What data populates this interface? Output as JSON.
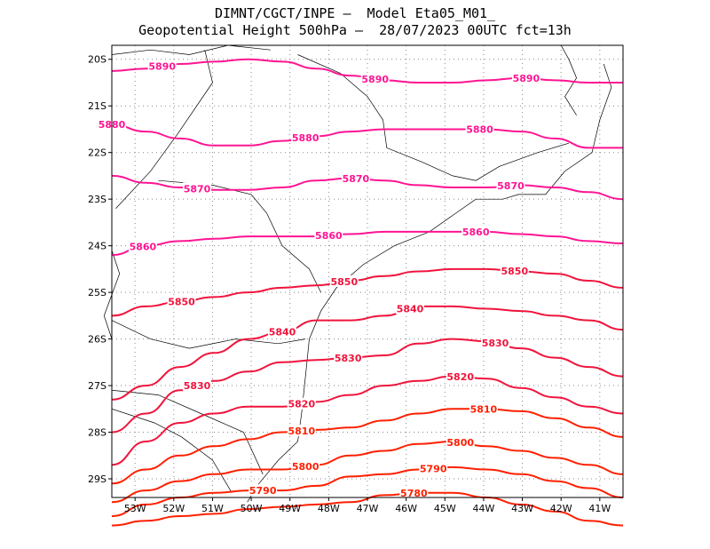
{
  "header": {
    "line1": "DIMNT/CGCT/INPE –  Model Eta05_M01_",
    "line2": "Geopotential Height 500hPa –  28/07/2023 00UTC fct=13h"
  },
  "axes": {
    "lon_labels": [
      "53W",
      "52W",
      "51W",
      "50W",
      "49W",
      "48W",
      "47W",
      "46W",
      "45W",
      "44W",
      "43W",
      "42W",
      "41W"
    ],
    "lat_labels": [
      "20S",
      "21S",
      "22S",
      "23S",
      "24S",
      "25S",
      "26S",
      "27S",
      "28S",
      "29S"
    ]
  },
  "colors": {
    "high": "#ff1493",
    "mid": "#f0143c",
    "low": "#ff2000",
    "coast": "#000000",
    "grid": "#888888"
  },
  "contours": [
    {
      "value": "5890",
      "lat": [
        20.25,
        20.2,
        20.1,
        20.05,
        20.0,
        20.05,
        20.2,
        20.35,
        20.45,
        20.5,
        20.5,
        20.45,
        20.4,
        20.45,
        20.5,
        20.5
      ],
      "labels": [
        {
          "text": "5890",
          "lon": -52.3
        },
        {
          "text": "5890",
          "lon": -46.8
        },
        {
          "text": "5890",
          "lon": -42.9
        }
      ]
    },
    {
      "value": "5880",
      "lat": [
        21.4,
        21.55,
        21.7,
        21.85,
        21.85,
        21.75,
        21.65,
        21.55,
        21.5,
        21.5,
        21.5,
        21.5,
        21.55,
        21.7,
        21.9,
        21.9
      ],
      "labels": [
        {
          "text": "5880",
          "lon": -53.6
        },
        {
          "text": "5880",
          "lon": -48.6
        },
        {
          "text": "5880",
          "lon": -44.1
        }
      ]
    },
    {
      "value": "5870",
      "lat": [
        22.5,
        22.65,
        22.75,
        22.8,
        22.8,
        22.75,
        22.6,
        22.55,
        22.6,
        22.7,
        22.75,
        22.75,
        22.7,
        22.75,
        22.85,
        23.0
      ],
      "labels": [
        {
          "text": "5870",
          "lon": -51.4
        },
        {
          "text": "5870",
          "lon": -47.3
        },
        {
          "text": "5870",
          "lon": -43.3
        }
      ]
    },
    {
      "value": "5860",
      "lat": [
        24.2,
        24.0,
        23.9,
        23.85,
        23.8,
        23.8,
        23.8,
        23.75,
        23.7,
        23.7,
        23.7,
        23.7,
        23.75,
        23.8,
        23.9,
        23.95
      ],
      "labels": [
        {
          "text": "5860",
          "lon": -52.8
        },
        {
          "text": "5860",
          "lon": -48.0
        },
        {
          "text": "5860",
          "lon": -44.2
        }
      ]
    },
    {
      "value": "5850",
      "lat": [
        25.5,
        25.3,
        25.2,
        25.1,
        25.0,
        24.9,
        24.85,
        24.75,
        24.65,
        24.55,
        24.5,
        24.5,
        24.55,
        24.6,
        24.75,
        24.9
      ],
      "labels": [
        {
          "text": "5850",
          "lon": -51.8
        },
        {
          "text": "5850",
          "lon": -47.6
        },
        {
          "text": "5850",
          "lon": -43.2
        }
      ]
    },
    {
      "value": "5840",
      "lat": [
        27.3,
        27.0,
        26.6,
        26.3,
        26.0,
        25.85,
        25.6,
        25.6,
        25.5,
        25.3,
        25.3,
        25.35,
        25.4,
        25.5,
        25.6,
        25.8
      ],
      "labels": [
        {
          "text": "5840",
          "lon": -49.2
        },
        {
          "text": "5840",
          "lon": -45.9
        }
      ]
    },
    {
      "value": "5830",
      "lat": [
        28.0,
        27.6,
        27.1,
        26.9,
        26.7,
        26.5,
        26.45,
        26.4,
        26.35,
        26.1,
        26.0,
        26.05,
        26.2,
        26.4,
        26.6,
        26.8
      ],
      "labels": [
        {
          "text": "5830",
          "lon": -51.4
        },
        {
          "text": "5830",
          "lon": -47.5
        },
        {
          "text": "5830",
          "lon": -43.7
        }
      ]
    },
    {
      "value": "5820",
      "lat": [
        28.7,
        28.2,
        27.8,
        27.6,
        27.45,
        27.45,
        27.35,
        27.2,
        27.0,
        26.9,
        26.8,
        26.85,
        27.05,
        27.25,
        27.45,
        27.6
      ],
      "labels": [
        {
          "text": "5820",
          "lon": -48.7
        },
        {
          "text": "5820",
          "lon": -44.6
        }
      ]
    },
    {
      "value": "5810",
      "lat": [
        29.1,
        28.8,
        28.5,
        28.3,
        28.15,
        28.0,
        27.95,
        27.9,
        27.75,
        27.6,
        27.5,
        27.5,
        27.55,
        27.7,
        27.9,
        28.1
      ],
      "labels": [
        {
          "text": "5810",
          "lon": -48.7
        },
        {
          "text": "5810",
          "lon": -44.0
        }
      ]
    },
    {
      "value": "5800",
      "lat": [
        29.5,
        29.25,
        29.05,
        28.9,
        28.8,
        28.8,
        28.7,
        28.5,
        28.4,
        28.25,
        28.2,
        28.3,
        28.4,
        28.55,
        28.7,
        28.9
      ],
      "labels": [
        {
          "text": "5800",
          "lon": -48.6
        },
        {
          "text": "5800",
          "lon": -44.6
        }
      ]
    },
    {
      "value": "5790",
      "lat": [
        29.8,
        29.55,
        29.4,
        29.3,
        29.25,
        29.25,
        29.15,
        28.95,
        28.9,
        28.8,
        28.75,
        28.8,
        28.9,
        29.05,
        29.2,
        29.4
      ],
      "labels": [
        {
          "text": "5790",
          "lon": -49.7
        },
        {
          "text": "5790",
          "lon": -45.3
        }
      ]
    },
    {
      "value": "5780",
      "lat": [
        30.0,
        29.9,
        29.8,
        29.75,
        29.65,
        29.6,
        29.55,
        29.5,
        29.35,
        29.3,
        29.3,
        29.4,
        29.55,
        29.7,
        29.9,
        30.0
      ],
      "labels": [
        {
          "text": "5780",
          "lon": -45.8
        }
      ]
    }
  ]
}
